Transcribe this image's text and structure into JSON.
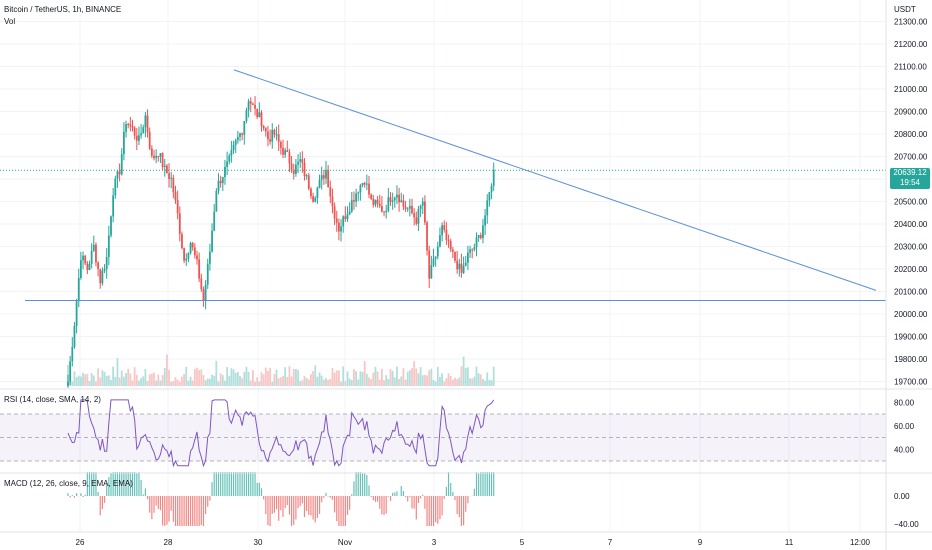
{
  "header": {
    "symbol_line": "Bitcoin / TetherUS, 1h, BINANCE",
    "volume_label": "Vol"
  },
  "price_axis": {
    "currency": "USDT",
    "ticks": [
      "21300.00",
      "21200.00",
      "21100.00",
      "21000.00",
      "20900.00",
      "20800.00",
      "20700.00",
      "20600.00",
      "20500.00",
      "20400.00",
      "20300.00",
      "20200.00",
      "20100.00",
      "20000.00",
      "19900.00",
      "19800.00",
      "19700.00"
    ]
  },
  "current_price": {
    "value": "20639.12",
    "countdown": "19:54",
    "color": "#26a69a"
  },
  "rsi": {
    "label": "RSI (14, close, SMA, 14, 2)",
    "ticks": [
      "80.00",
      "60.00",
      "40.00"
    ],
    "band_color": "#7e57c2"
  },
  "macd": {
    "label": "MACD (12, 26, close, 9, EMA, EMA)",
    "ticks": [
      "0.00",
      "−40.00"
    ]
  },
  "time_axis": {
    "labels": [
      "26",
      "28",
      "30",
      "Nov",
      "3",
      "5",
      "7",
      "9",
      "11",
      "12:00"
    ]
  },
  "drawings": {
    "trendline_color": "#5b8fd9",
    "resistance": {
      "from_price": 21085,
      "to_price": 20105
    },
    "support_price": 20060
  },
  "colors": {
    "up": "#26a69a",
    "down": "#ef5350",
    "grid": "#f0f3fa"
  },
  "chart_data": {
    "type": "candlestick",
    "price_range": [
      19680,
      21360
    ],
    "close_path": [
      [
        0,
        19700
      ],
      [
        3,
        19960
      ],
      [
        6,
        20260
      ],
      [
        9,
        20200
      ],
      [
        12,
        20300
      ],
      [
        15,
        20150
      ],
      [
        18,
        20250
      ],
      [
        21,
        20550
      ],
      [
        24,
        20640
      ],
      [
        27,
        20860
      ],
      [
        30,
        20820
      ],
      [
        33,
        20770
      ],
      [
        36,
        20880
      ],
      [
        39,
        20690
      ],
      [
        42,
        20720
      ],
      [
        45,
        20640
      ],
      [
        48,
        20600
      ],
      [
        51,
        20440
      ],
      [
        54,
        20240
      ],
      [
        57,
        20320
      ],
      [
        60,
        20220
      ],
      [
        63,
        20060
      ],
      [
        66,
        20280
      ],
      [
        69,
        20560
      ],
      [
        72,
        20620
      ],
      [
        75,
        20680
      ],
      [
        78,
        20760
      ],
      [
        81,
        20820
      ],
      [
        84,
        20960
      ],
      [
        87,
        20900
      ],
      [
        90,
        20860
      ],
      [
        93,
        20780
      ],
      [
        96,
        20800
      ],
      [
        99,
        20740
      ],
      [
        102,
        20700
      ],
      [
        105,
        20640
      ],
      [
        108,
        20680
      ],
      [
        111,
        20600
      ],
      [
        114,
        20520
      ],
      [
        117,
        20580
      ],
      [
        120,
        20640
      ],
      [
        123,
        20480
      ],
      [
        126,
        20380
      ],
      [
        129,
        20440
      ],
      [
        132,
        20500
      ],
      [
        135,
        20560
      ],
      [
        138,
        20600
      ],
      [
        141,
        20500
      ],
      [
        144,
        20480
      ],
      [
        147,
        20460
      ],
      [
        150,
        20520
      ],
      [
        153,
        20540
      ],
      [
        156,
        20480
      ],
      [
        159,
        20460
      ],
      [
        162,
        20420
      ],
      [
        165,
        20500
      ],
      [
        168,
        20160
      ],
      [
        171,
        20260
      ],
      [
        174,
        20380
      ],
      [
        177,
        20300
      ],
      [
        180,
        20240
      ],
      [
        183,
        20180
      ],
      [
        186,
        20260
      ],
      [
        189,
        20300
      ],
      [
        192,
        20360
      ],
      [
        195,
        20480
      ],
      [
        198,
        20640
      ]
    ]
  }
}
